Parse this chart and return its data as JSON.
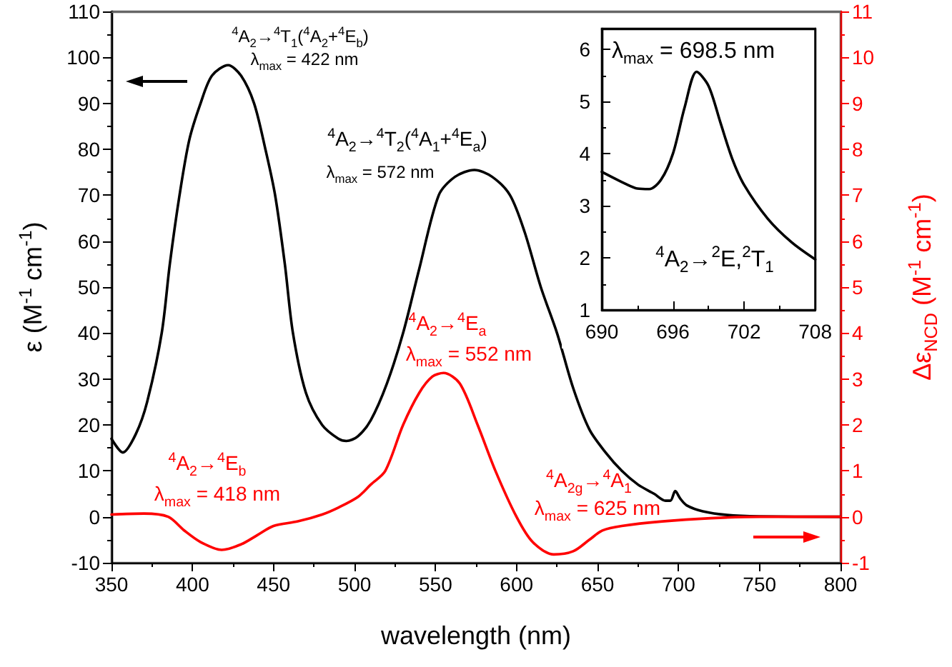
{
  "chart_data": [
    {
      "type": "line",
      "xlabel": "wavelength (nm)",
      "ylabel": "ε (M$^{-1}$ cm$^{-1}$)",
      "y2label": "Δε$_{NCD}$ (M$^{-1}$ cm$^{-1}$)",
      "xlim": [
        350,
        800
      ],
      "xticks": [
        350,
        400,
        450,
        500,
        550,
        600,
        650,
        700,
        750,
        800
      ],
      "ylim": [
        -10,
        110
      ],
      "yticks": [
        -10,
        0,
        10,
        20,
        30,
        40,
        50,
        60,
        70,
        80,
        90,
        100,
        110
      ],
      "y2lim": [
        -1,
        11
      ],
      "y2ticks": [
        -1,
        0,
        1,
        2,
        3,
        4,
        5,
        6,
        7,
        8,
        9,
        10,
        11
      ],
      "grid": false,
      "marker": "none",
      "line_style": "solid",
      "series": [
        {
          "color": "#000000",
          "x": [
            350,
            357,
            365,
            372,
            381,
            386,
            392,
            398,
            405,
            412,
            422,
            430,
            438,
            445,
            451,
            457,
            462,
            470,
            480,
            490,
            495,
            502,
            510,
            520,
            530,
            540,
            552,
            562,
            574,
            585,
            596,
            605,
            615,
            625,
            635,
            645,
            655,
            665,
            675,
            685,
            692,
            695,
            698,
            701,
            705,
            715,
            730,
            750,
            800
          ],
          "values": [
            17,
            14,
            18,
            25,
            40,
            55,
            70,
            82,
            90,
            96,
            98.3,
            96,
            90,
            80,
            70,
            55,
            40,
            27,
            20,
            17,
            16.5,
            17.5,
            21,
            29,
            40,
            54,
            70,
            74,
            75.5,
            74,
            70,
            62,
            50,
            40,
            28,
            19,
            14,
            10,
            7,
            5,
            3.5,
            3.5,
            5.6,
            4,
            2.5,
            1.2,
            0.4,
            0.1,
            0
          ]
        },
        {
          "color": "#ff0000",
          "axis": "y2",
          "x": [
            350,
            370,
            385,
            395,
            405,
            418,
            430,
            440,
            450,
            465,
            480,
            490,
            502,
            510,
            519,
            530,
            540,
            548,
            555,
            565,
            576,
            587,
            600,
            610,
            623,
            635,
            645,
            653,
            665,
            690,
            720,
            750,
            800
          ],
          "values": [
            0.05,
            0.07,
            0,
            -0.3,
            -0.55,
            -0.72,
            -0.6,
            -0.4,
            -0.2,
            -0.1,
            0.05,
            0.2,
            0.43,
            0.7,
            1.0,
            2.0,
            2.7,
            3.05,
            3.13,
            2.9,
            2.0,
            1.0,
            0.0,
            -0.55,
            -0.82,
            -0.75,
            -0.5,
            -0.3,
            -0.2,
            -0.1,
            -0.03,
            0,
            0
          ]
        }
      ],
      "annotations": [
        "$^{4}$A$_{2}$→$^{4}$T$_{1}$($^{4}$A$_{2}$+$^{4}$E$_{b}$)",
        "λ$_{max}$ = 422 nm",
        "$^{4}$A$_{2}$→$^{4}$T$_{2}$($^{4}$A$_{1}$+$^{4}$E$_{a}$)",
        "λ$_{max}$ = 572 nm",
        "$^{4}$A$_{2}$→$^{4}$E$_{a}$",
        "λ$_{max}$ = 552 nm",
        "$^{4}$A$_{2}$→$^{4}$E$_{b}$",
        "λ$_{max}$ = 418 nm",
        "$^{4}$A$_{2g}$→$^{4}$A$_{1}$",
        "λ$_{max}$ = 625 nm"
      ]
    },
    {
      "type": "line",
      "xlim": [
        690,
        708
      ],
      "xticks": [
        690,
        696,
        702,
        708
      ],
      "ylim": [
        1,
        6.4
      ],
      "yticks": [
        1,
        2,
        3,
        4,
        5,
        6
      ],
      "grid": false,
      "marker": "none",
      "line_style": "solid",
      "x": [
        690,
        692,
        693,
        694,
        695,
        696,
        697,
        698,
        699,
        700,
        701,
        702,
        704,
        706,
        708
      ],
      "series": [
        {
          "color": "#000000",
          "values": [
            3.65,
            3.42,
            3.33,
            3.32,
            3.5,
            4.0,
            4.9,
            5.57,
            5.3,
            4.6,
            3.9,
            3.4,
            2.75,
            2.3,
            1.97
          ]
        }
      ],
      "annotations": [
        "λ$_{max}$ = 698.5 nm",
        "$^{4}$A$_{2}$→$^{2}$E,$^{2}$T$_{1}$"
      ]
    }
  ]
}
